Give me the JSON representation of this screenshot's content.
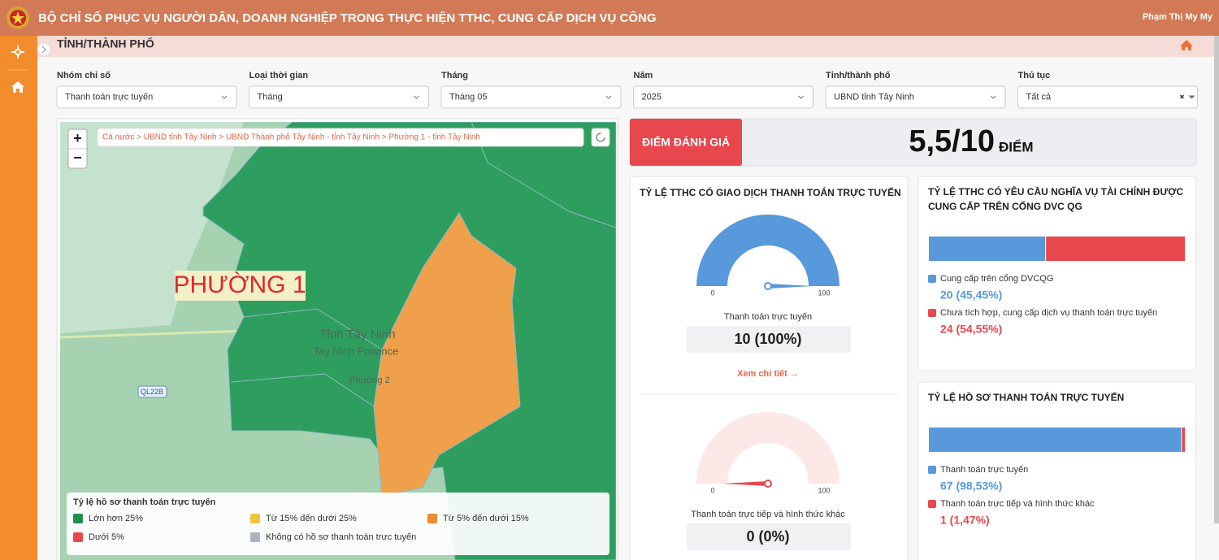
{
  "header": {
    "title": "BỘ CHỈ SỐ PHỤC VỤ NGƯỜI DÂN, DOANH NGHIỆP TRONG THỰC HIỆN TTHC, CUNG CẤP DỊCH VỤ CÔNG",
    "user": "Phạm Thị My My"
  },
  "page_title": "TỈNH/THÀNH PHỐ",
  "filters": [
    {
      "label": "Nhóm chỉ số",
      "value": "Thanh toán trực tuyến"
    },
    {
      "label": "Loại thời gian",
      "value": "Tháng"
    },
    {
      "label": "Tháng",
      "value": "Tháng 05"
    },
    {
      "label": "Năm",
      "value": "2025"
    },
    {
      "label": "Tỉnh/thành phố",
      "value": "UBND tỉnh Tây Ninh"
    },
    {
      "label": "Thủ tục",
      "value": "Tất cả"
    }
  ],
  "map": {
    "breadcrumb": "Cả nước > UBND tỉnh Tây Ninh > UBND Thành phố Tây Ninh - tỉnh Tây Ninh > Phường 1 - tỉnh Tây Ninh",
    "zoom_in": "+",
    "zoom_out": "−",
    "region_label": "PHƯỜNG 1",
    "places": [
      "Tỉnh Tây Ninh",
      "Tay Ninh Province",
      "Phường 2"
    ],
    "road": "QL22B",
    "legend": {
      "title": "Tỷ lệ hồ sơ thanh toán trực tuyến",
      "items": [
        {
          "name": "Lớn hơn 25%",
          "color": "#1f8f4e"
        },
        {
          "name": "Từ 15% đến dưới 25%",
          "color": "#f0c43c"
        },
        {
          "name": "Từ 5% đến dưới 15%",
          "color": "#f0892f"
        },
        {
          "name": "Dưới 5%",
          "color": "#e8474e"
        },
        {
          "name": "Không có hồ sơ thanh toán trực tuyến",
          "color": "#a9b4bf"
        }
      ]
    }
  },
  "score": {
    "label": "ĐIỂM ĐÁNH GIÁ",
    "value": "5,5/10",
    "unit": "ĐIỂM"
  },
  "gauge_card": {
    "title": "TỶ LỆ TTHC CÓ GIAO DỊCH THANH TOÁN TRỰC TUYẾN",
    "track": "#fde8e8",
    "gauges": [
      {
        "label": "Thanh toán trực tuyến",
        "value": 100,
        "value_label": "10 (100%)",
        "min": 0,
        "max": 100,
        "color": "#5899db"
      },
      {
        "label": "Thanh toán trực tiếp và hình thức khác",
        "value": 0,
        "value_label": "0 (0%)",
        "min": 0,
        "max": 100,
        "color": "#e8474e"
      }
    ],
    "link": "Xem chi tiết →"
  },
  "bar_cards": [
    {
      "title": [
        "TỶ LỆ TTHC CÓ YÊU CẦU NGHĨA VỤ TÀI CHÍNH ĐƯỢC",
        "CUNG CẤP TRÊN CỔNG DVC QG"
      ],
      "xlim": [
        0,
        100
      ],
      "series": [
        {
          "name": "Cung cấp trên cổng DVCQG",
          "color": "#5899db",
          "value": 45.45,
          "value_label": "20 (45,45%)"
        },
        {
          "name": "Chưa tích hợp, cung cấp dịch vụ thanh toán trực tuyến",
          "color": "#e8474e",
          "value": 54.55,
          "value_label": "24 (54,55%)"
        }
      ]
    },
    {
      "title": [
        "TỶ LỆ HỒ SƠ THANH TOÁN TRỰC TUYẾN"
      ],
      "xlim": [
        0,
        100
      ],
      "series": [
        {
          "name": "Thanh toán trực tuyến",
          "color": "#5899db",
          "value": 98.53,
          "value_label": "67 (98,53%)"
        },
        {
          "name": "Thanh toán trực tiếp và hình thức khác",
          "color": "#e8474e",
          "value": 1.47,
          "value_label": "1 (1,47%)"
        }
      ]
    }
  ]
}
